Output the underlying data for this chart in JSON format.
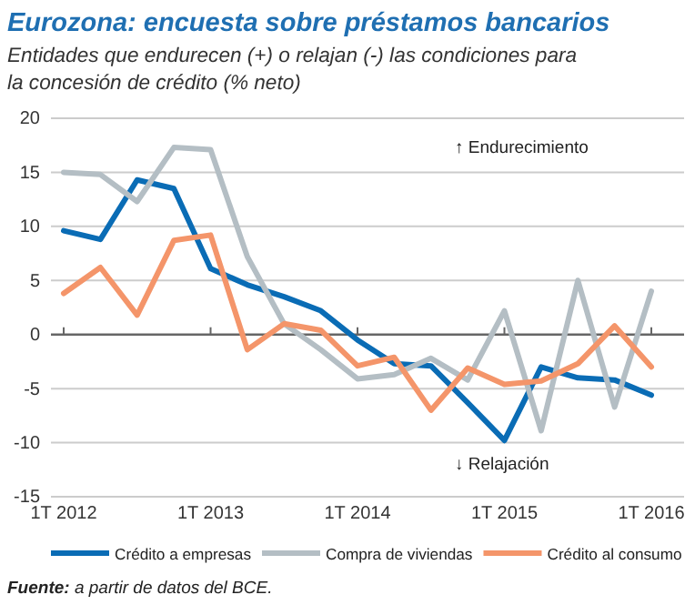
{
  "chart_data": {
    "type": "line",
    "title": "Eurozona: encuesta sobre préstamos bancarios",
    "subtitle": "Entidades que endurecen (+) o relajan (-) las condiciones para la concesión de crédito (% neto)",
    "categories": [
      "1T 2012",
      null,
      null,
      null,
      "1T 2013",
      null,
      null,
      null,
      "1T 2014",
      null,
      null,
      null,
      "1T 2015",
      null,
      null,
      null,
      "1T 2016"
    ],
    "series": [
      {
        "name": "Crédito a empresas",
        "color": "#0a6cb5",
        "values": [
          9.6,
          8.8,
          14.3,
          13.5,
          6.1,
          4.6,
          3.5,
          2.2,
          -0.5,
          -2.7,
          -2.9,
          -6.3,
          -9.8,
          -3.0,
          -4.0,
          -4.2,
          -5.6
        ]
      },
      {
        "name": "Compra de viviendas",
        "color": "#b4bec4",
        "values": [
          15.0,
          14.8,
          12.3,
          17.3,
          17.1,
          7.2,
          1.0,
          -1.4,
          -4.1,
          -3.7,
          -2.2,
          -4.2,
          2.2,
          -8.9,
          5.0,
          -6.7,
          4.0
        ]
      },
      {
        "name": "Crédito al consumo",
        "color": "#f4956a",
        "values": [
          3.8,
          6.2,
          1.8,
          8.7,
          9.2,
          -1.4,
          1.0,
          0.4,
          -2.9,
          -2.1,
          -7.0,
          -3.1,
          -4.6,
          -4.3,
          -2.7,
          0.8,
          -3.0
        ]
      }
    ],
    "ylim": [
      -15,
      20
    ],
    "yticks": [
      -15,
      -10,
      -5,
      0,
      5,
      10,
      15,
      20
    ],
    "grid": "y",
    "legend": "bottom",
    "marker": "none",
    "line_style": "solid",
    "annotations": [
      "↑ Endurecimiento",
      "↓ Relajación",
      "Fuente: a partir de datos del BCE."
    ]
  }
}
